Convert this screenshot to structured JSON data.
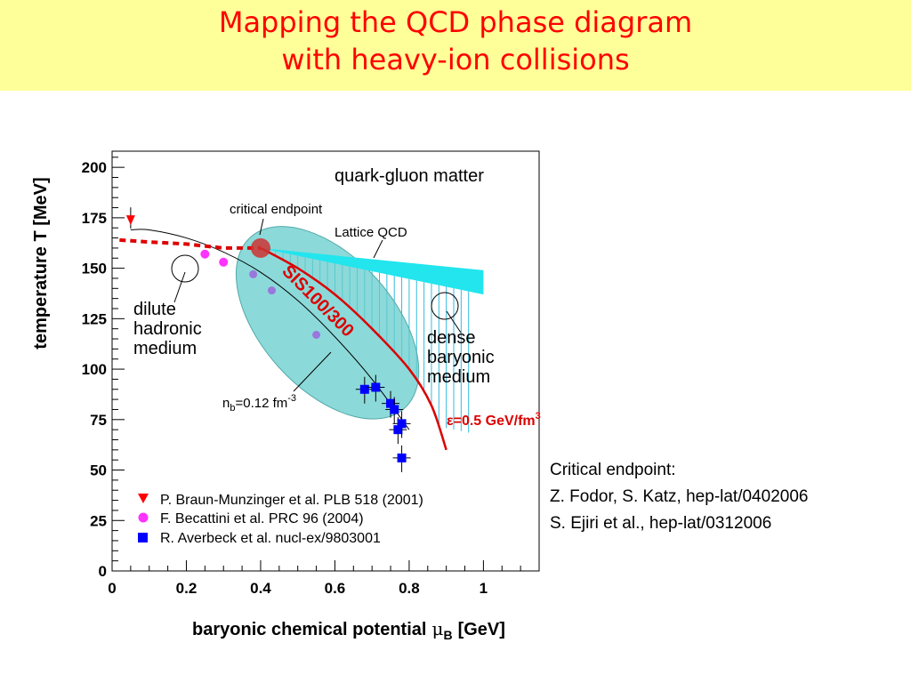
{
  "slide": {
    "title_line_1": "Mapping the QCD  phase diagram",
    "title_line_2": "with heavy-ion collisions",
    "colors": {
      "title_bg": "#ffff99",
      "title_text": "#ff0000"
    }
  },
  "references": {
    "heading": "Critical endpoint:",
    "lines": [
      "Z. Fodor, S. Katz, hep-lat/0402006",
      "S. Ejiri et al., hep-lat/0312006"
    ]
  },
  "chart_data": {
    "type": "scatter",
    "xlabel": "baryonic chemical potential μB [GeV]",
    "xlabel_main": "baryonic chemical potential",
    "xlabel_mu": "μ",
    "xlabel_sub": "B",
    "xlabel_unit": "[GeV]",
    "ylabel": "temperature T [MeV]",
    "xlim": [
      0,
      1.15
    ],
    "ylim": [
      0,
      208
    ],
    "x_ticks": [
      0,
      0.2,
      0.4,
      0.6,
      0.8,
      1
    ],
    "x_tick_labels": [
      "0",
      "0.2",
      "0.4",
      "0.6",
      "0.8",
      "1"
    ],
    "y_ticks": [
      0,
      25,
      50,
      75,
      100,
      125,
      150,
      175,
      200
    ],
    "y_tick_labels": [
      "0",
      "25",
      "50",
      "75",
      "100",
      "125",
      "150",
      "175",
      "200"
    ],
    "legend_position": "bottom-left",
    "series": [
      {
        "name": "P. Braun-Munzinger et al. PLB 518 (2001)",
        "marker": "triangle-down",
        "color": "#ff0000",
        "points": [
          [
            0.05,
            174
          ]
        ]
      },
      {
        "name": "F. Becattini et al. PRC 96 (2004)",
        "marker": "circle",
        "color": "#ff33ff",
        "points": [
          [
            0.25,
            157
          ],
          [
            0.3,
            153
          ]
        ]
      },
      {
        "name": "R. Averbeck et al. nucl-ex/9803001",
        "marker": "square",
        "color": "#0000ff",
        "points": [
          [
            0.68,
            90
          ],
          [
            0.71,
            91
          ],
          [
            0.75,
            83
          ],
          [
            0.76,
            80
          ],
          [
            0.77,
            70
          ],
          [
            0.78,
            73
          ],
          [
            0.78,
            56
          ]
        ]
      }
    ],
    "extra_points": {
      "color": "#9977dd",
      "points": [
        [
          0.38,
          147
        ],
        [
          0.43,
          139
        ],
        [
          0.55,
          117
        ]
      ]
    },
    "freezeout_curve": {
      "color": "#000000",
      "points": [
        [
          0.05,
          169
        ],
        [
          0.1,
          169
        ],
        [
          0.2,
          165
        ],
        [
          0.3,
          158
        ],
        [
          0.4,
          148
        ],
        [
          0.5,
          134
        ],
        [
          0.6,
          116
        ],
        [
          0.7,
          95
        ],
        [
          0.8,
          70
        ]
      ]
    },
    "lattice_dashed": {
      "color": "#dd0000",
      "points": [
        [
          0.02,
          164
        ],
        [
          0.1,
          163
        ],
        [
          0.2,
          162
        ],
        [
          0.3,
          160
        ],
        [
          0.4,
          160
        ]
      ]
    },
    "epsilon_curve": {
      "label": "ε=0.5 GeV/fm³",
      "label_main": "ε=0.5 GeV/fm",
      "label_sup": "3",
      "color": "#dd0000",
      "points": [
        [
          0.4,
          160
        ],
        [
          0.5,
          150
        ],
        [
          0.6,
          137
        ],
        [
          0.7,
          120
        ],
        [
          0.8,
          100
        ],
        [
          0.86,
          82
        ],
        [
          0.9,
          60
        ]
      ]
    },
    "critical_endpoint": {
      "x": 0.4,
      "y": 160,
      "color": "#cc3333",
      "label": "critical endpoint"
    },
    "lattice_band": {
      "label": "Lattice QCD",
      "color": "#22e5ee",
      "upper": [
        [
          0.4,
          160
        ],
        [
          1.0,
          149
        ]
      ],
      "lower": [
        [
          0.4,
          160
        ],
        [
          1.0,
          137
        ]
      ]
    },
    "sis_region": {
      "label": "SIS100/300",
      "color": "#66cccc",
      "label_color": "#dd0000",
      "center": [
        0.58,
        123
      ],
      "width": 0.31,
      "height": 86,
      "rotation_data_deg": -48
    },
    "hatch_region": {
      "color": "#33bbdd",
      "x_from": 0.4,
      "x_to": 0.98
    },
    "annotations": {
      "qgm": "quark-gluon matter",
      "dilute": [
        "dilute",
        "hadronic",
        "medium"
      ],
      "dense": [
        "dense",
        "baryonic",
        "medium"
      ],
      "nb_main": "n",
      "nb_sub": "b",
      "nb_rest": "=0.12 fm",
      "nb_sup": "-3"
    }
  }
}
